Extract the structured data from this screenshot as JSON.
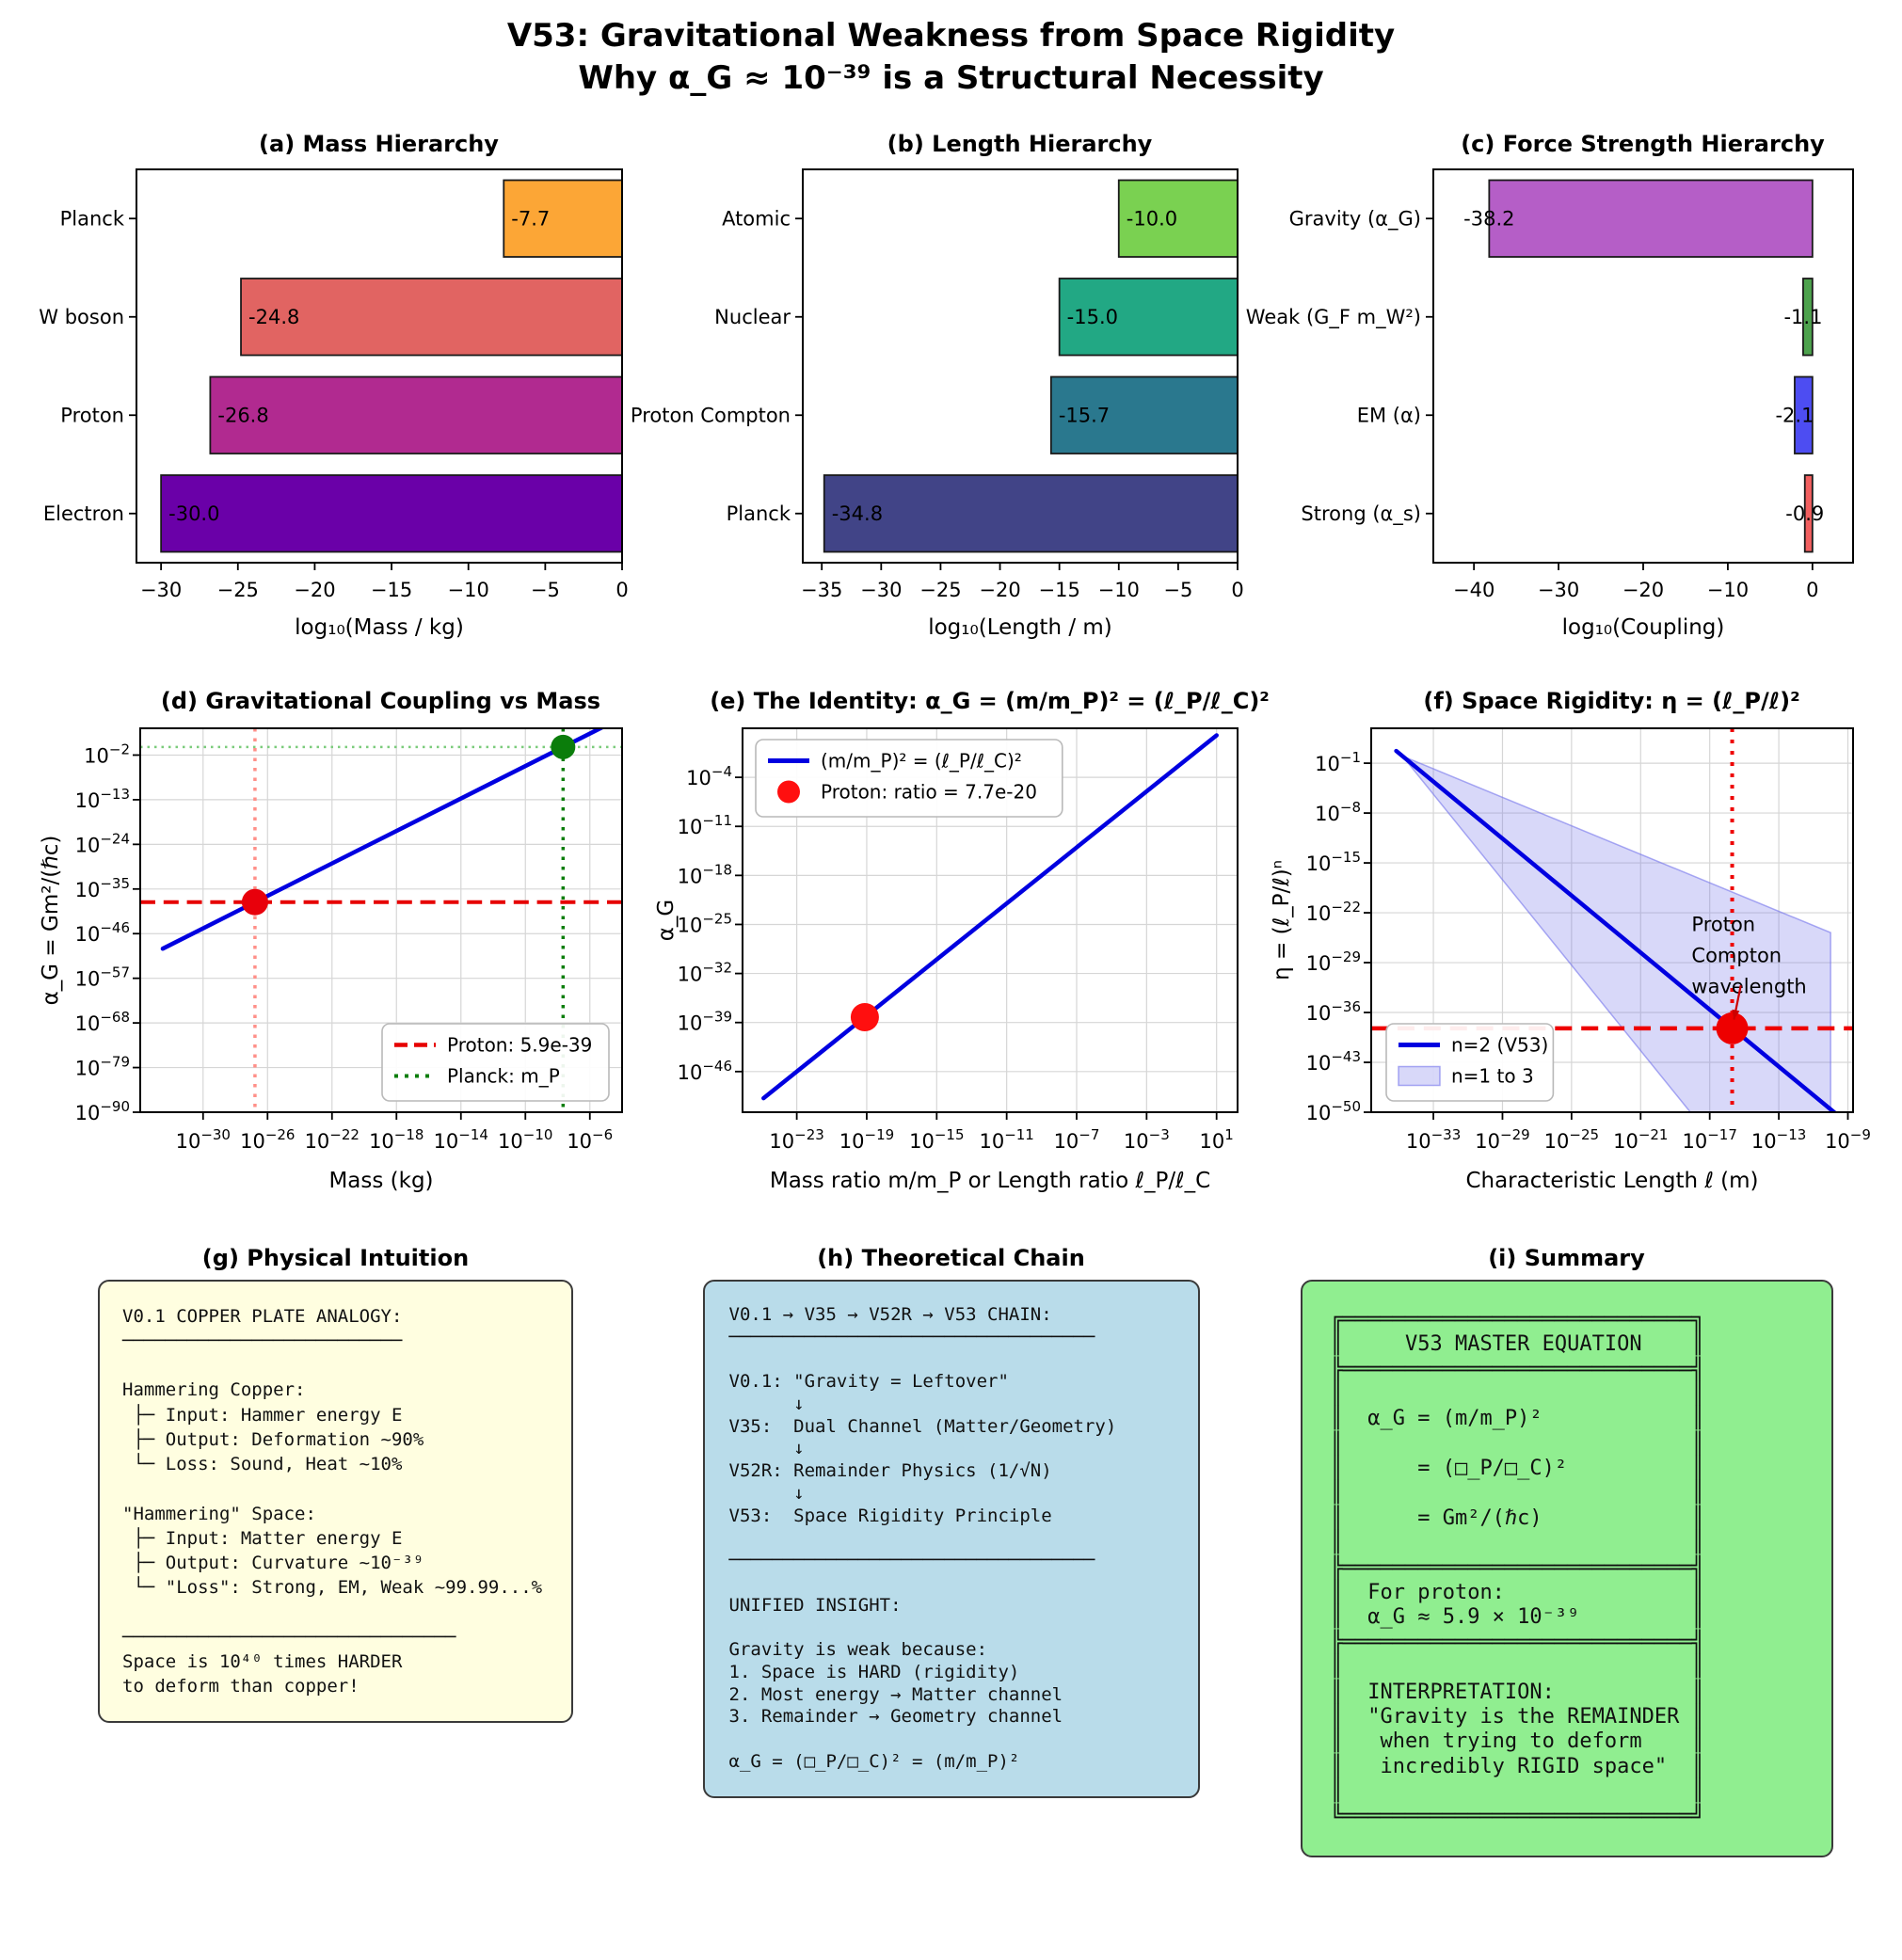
{
  "title": {
    "line1": "V53: Gravitational Weakness from Space Rigidity",
    "line2": "Why α_G ≈ 10⁻³⁹ is a Structural Necessity"
  },
  "chart_data": [
    {
      "id": "a",
      "type": "bar",
      "title": "(a) Mass Hierarchy",
      "xlabel": "log₁₀(Mass / kg)",
      "categories": [
        "Planck",
        "W boson",
        "Proton",
        "Electron"
      ],
      "values": [
        -7.7,
        -24.8,
        -26.8,
        -30.0
      ],
      "bar_colors": [
        "#fca636",
        "#e16462",
        "#b12a90",
        "#6a00a8"
      ],
      "xlim": [
        -31.6,
        0
      ],
      "xticks": [
        -30,
        -25,
        -20,
        -15,
        -10,
        -5,
        0
      ],
      "value_label_pos": "inside"
    },
    {
      "id": "b",
      "type": "bar",
      "title": "(b) Length Hierarchy",
      "xlabel": "log₁₀(Length / m)",
      "categories": [
        "Atomic",
        "Nuclear",
        "Proton Compton",
        "Planck"
      ],
      "values": [
        -10.0,
        -15.0,
        -15.7,
        -34.8
      ],
      "bar_colors": [
        "#7ad151",
        "#22a884",
        "#2a788e",
        "#414487"
      ],
      "xlim": [
        -36.6,
        0
      ],
      "xticks": [
        -35,
        -30,
        -25,
        -20,
        -15,
        -10,
        -5,
        0
      ],
      "value_label_pos": "inside"
    },
    {
      "id": "c",
      "type": "bar",
      "title": "(c) Force Strength Hierarchy",
      "xlabel": "log₁₀(Coupling)",
      "categories": [
        "Gravity (α_G)",
        "Weak (G_F m_W²)",
        "EM (α)",
        "Strong (α_s)"
      ],
      "values": [
        -38.2,
        -1.1,
        -2.1,
        -0.9
      ],
      "bar_colors": [
        "#b55ec7",
        "#4da24d",
        "#4d4df2",
        "#f25f5f"
      ],
      "xlim": [
        -44.8,
        4.8
      ],
      "xticks": [
        -40,
        -30,
        -20,
        -10,
        0
      ],
      "value_label_pos": "edge"
    },
    {
      "id": "d",
      "type": "logline",
      "title": "(d) Gravitational Coupling vs Mass",
      "xlabel": "Mass (kg)",
      "ylabel": "α_G = Gm²/(ℏc)",
      "xlim": [
        -33.9,
        -4.0
      ],
      "ylim": [
        -90,
        4.6
      ],
      "xticks": [
        -30,
        -26,
        -22,
        -18,
        -14,
        -10,
        -6
      ],
      "yticks": [
        -2,
        -13,
        -24,
        -35,
        -46,
        -57,
        -68,
        -79,
        -90
      ],
      "lines": [
        {
          "x": [
            -32.5,
            -4.0
          ],
          "y": [
            -49.7,
            7.3
          ],
          "color": "#0000e0",
          "width": 4.5
        }
      ],
      "hlines": [
        {
          "y": -38.23,
          "color": "#e60000",
          "style": "dashed",
          "width": 4
        },
        {
          "y": 0,
          "color": "#7ccc7c",
          "style": "dotted",
          "width": 2.5
        }
      ],
      "vlines": [
        {
          "x": -26.78,
          "color": "#ff8f88",
          "style": "dotted",
          "width": 3.5
        },
        {
          "x": -7.66,
          "color": "#0b7d0b",
          "style": "dotted",
          "width": 3.5
        }
      ],
      "points": [
        {
          "x": -26.78,
          "y": -38.23,
          "r": 14,
          "color": "#e8000b",
          "name": "Proton"
        },
        {
          "x": -7.66,
          "y": 0,
          "r": 13,
          "color": "#0b7d0b",
          "name": "Planck"
        }
      ],
      "legend": {
        "loc": "lower-right",
        "items": [
          {
            "sample": "dashed-line",
            "color": "#e60000",
            "label": "Proton: 5.9e-39"
          },
          {
            "sample": "dotted-line",
            "color": "#0b7d0b",
            "label": "Planck: m_P"
          }
        ]
      }
    },
    {
      "id": "e",
      "type": "logline",
      "title": "(e) The Identity: α_G = (m/m_P)² = (ℓ_P/ℓ_C)²",
      "xlabel": "Mass ratio m/m_P  or  Length ratio ℓ_P/ℓ_C",
      "ylabel": "α_G",
      "xlim": [
        -26.1,
        2.2
      ],
      "ylim": [
        -51.8,
        3.0
      ],
      "xticks": [
        -23,
        -19,
        -15,
        -11,
        -7,
        -3,
        1
      ],
      "yticks": [
        -4,
        -11,
        -18,
        -25,
        -32,
        -39,
        -46
      ],
      "lines": [
        {
          "x": [
            -24.9,
            1.0
          ],
          "y": [
            -49.8,
            2.0
          ],
          "color": "#0000e0",
          "width": 4.5
        }
      ],
      "hlines": [],
      "vlines": [],
      "points": [
        {
          "x": -19.11,
          "y": -38.23,
          "r": 15,
          "color": "#ff0f0f",
          "name": "Proton"
        }
      ],
      "legend": {
        "loc": "upper-left",
        "items": [
          {
            "sample": "line",
            "color": "#0000e0",
            "label": "(m/m_P)² = (ℓ_P/ℓ_C)²"
          },
          {
            "sample": "dot",
            "color": "#ff0f0f",
            "label": "Proton: ratio = 7.7e-20"
          }
        ]
      }
    },
    {
      "id": "f",
      "type": "logline",
      "title": "(f) Space Rigidity: η = (ℓ_P/ℓ)²",
      "xlabel": "Characteristic Length ℓ (m)",
      "ylabel": "η = (ℓ_P/ℓ)ⁿ",
      "xlim": [
        -36.6,
        -8.7
      ],
      "ylim": [
        -50,
        3.9
      ],
      "xticks": [
        -33,
        -29,
        -25,
        -21,
        -17,
        -13,
        -9
      ],
      "yticks": [
        -1,
        -8,
        -15,
        -22,
        -29,
        -36,
        -43,
        -50
      ],
      "band": {
        "points": [
          [
            -34.79,
            0
          ],
          [
            -10.0,
            -24.79
          ],
          [
            -10.0,
            -50
          ],
          [
            -18.12,
            -50
          ]
        ],
        "fill": "rgba(115,115,235,0.28)",
        "edge": "rgba(115,115,235,0.6)"
      },
      "lines": [
        {
          "x": [
            -35.15,
            -9.6
          ],
          "y": [
            0.72,
            -50.4
          ],
          "color": "#0000e0",
          "width": 4.5
        }
      ],
      "hlines": [
        {
          "y": -38.23,
          "color": "#ee0000",
          "style": "dashed",
          "width": 4.5
        }
      ],
      "vlines": [
        {
          "x": -15.7,
          "color": "#ee0000",
          "style": "dotted",
          "width": 4
        }
      ],
      "points": [
        {
          "x": -15.7,
          "y": -38.23,
          "r": 17,
          "color": "#ee0000",
          "name": "Proton Compton"
        }
      ],
      "annotation": {
        "lines": [
          "Proton",
          "Compton",
          "wavelength"
        ],
        "x": -18.05,
        "y": -24.6,
        "arrow_from": [
          -15.2,
          -32.2
        ],
        "arrow_to": [
          -15.6,
          -37.0
        ],
        "color": "#cc0000"
      },
      "legend": {
        "loc": "lower-left",
        "items": [
          {
            "sample": "line",
            "color": "#0000e0",
            "label": "n=2 (V53)"
          },
          {
            "sample": "patch",
            "color": "rgba(115,115,235,0.28)",
            "edge": "rgba(115,115,235,0.6)",
            "label": "n=1 to 3"
          }
        ]
      }
    }
  ],
  "text_panels": {
    "g": {
      "title": "(g) Physical Intuition",
      "bg": "#fffee0",
      "lines": [
        "V0.1 COPPER PLATE ANALOGY:",
        "──────────────────────────",
        "",
        "Hammering Copper:",
        " ├─ Input: Hammer energy E",
        " ├─ Output: Deformation ~90%",
        " └─ Loss: Sound, Heat ~10%",
        "",
        "\"Hammering\" Space:",
        " ├─ Input: Matter energy E",
        " ├─ Output: Curvature ~10⁻³⁹",
        " └─ \"Loss\": Strong, EM, Weak ~99.99...%",
        "",
        "───────────────────────────────",
        "Space is 10⁴⁰ times HARDER",
        "to deform than copper!"
      ]
    },
    "h": {
      "title": "(h) Theoretical Chain",
      "bg": "#b9dcea",
      "lines": [
        "V0.1 → V35 → V52R → V53 CHAIN:",
        "──────────────────────────────────",
        "",
        "V0.1: \"Gravity = Leftover\"",
        "      ↓",
        "V35:  Dual Channel (Matter/Geometry)",
        "      ↓",
        "V52R: Remainder Physics (1/√N)",
        "      ↓",
        "V53:  Space Rigidity Principle",
        "",
        "──────────────────────────────────",
        "",
        "UNIFIED INSIGHT:",
        "",
        "Gravity is weak because:",
        "1. Space is HARD (rigidity)",
        "2. Most energy → Matter channel",
        "3. Remainder → Geometry channel",
        "",
        "α_G = (□_P/□_C)² = (m/m_P)²"
      ]
    },
    "i": {
      "title": "(i) Summary",
      "bg": "#90ee90",
      "lines": [
        "╔════════════════════════════╗",
        "║     V53 MASTER EQUATION    ║",
        "╠════════════════════════════╣",
        "║                            ║",
        "║  α_G = (m/m_P)²            ║",
        "║                            ║",
        "║      = (□_P/□_C)²          ║",
        "║                            ║",
        "║      = Gm²/(ℏc)            ║",
        "║                            ║",
        "╠════════════════════════════╣",
        "║  For proton:               ║",
        "║  α_G ≈ 5.9 × 10⁻³⁹         ║",
        "╠════════════════════════════╣",
        "║                            ║",
        "║  INTERPRETATION:           ║",
        "║  \"Gravity is the REMAINDER ║",
        "║   when trying to deform    ║",
        "║   incredibly RIGID space\"  ║",
        "║                            ║",
        "╚════════════════════════════╝"
      ]
    }
  }
}
